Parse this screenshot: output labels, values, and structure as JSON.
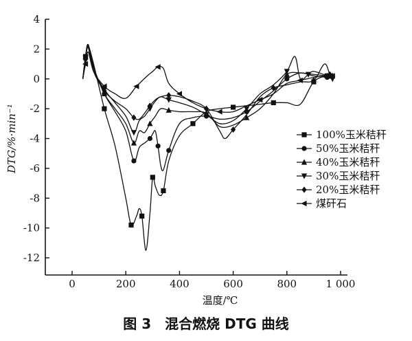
{
  "chart_data": {
    "type": "line",
    "caption": "图 3　混合燃烧 DTG 曲线",
    "xlabel": "温度/℃",
    "ylabel": "DTG/%·min⁻¹",
    "xlim": [
      0,
      1000
    ],
    "ylim": [
      -12,
      4
    ],
    "xticks": [
      0,
      200,
      400,
      600,
      800,
      1000
    ],
    "xtick_labels": [
      "0",
      "200",
      "400",
      "600",
      "800",
      "1 000"
    ],
    "yticks": [
      4,
      2,
      0,
      -2,
      -4,
      -6,
      -8,
      -10,
      -12
    ],
    "legend_position": "right",
    "series": [
      {
        "name": "100%玉米秸秆",
        "marker": "square",
        "x": [
          40,
          50,
          60,
          80,
          120,
          160,
          200,
          220,
          240,
          250,
          260,
          275,
          290,
          300,
          310,
          325,
          340,
          360,
          400,
          450,
          500,
          550,
          600,
          650,
          700,
          750,
          800,
          850,
          900,
          950,
          970
        ],
        "y": [
          0.0,
          1.5,
          2.2,
          1.0,
          -2.0,
          -4.5,
          -8.0,
          -9.8,
          -9.2,
          -8.7,
          -9.2,
          -11.5,
          -9.0,
          -6.6,
          -7.2,
          -7.8,
          -7.5,
          -5.5,
          -3.8,
          -3.0,
          -2.2,
          -2.0,
          -1.9,
          -1.8,
          -1.7,
          -1.6,
          -1.6,
          -1.7,
          -0.2,
          0.2,
          0.0
        ]
      },
      {
        "name": "50%玉米秸秆",
        "marker": "circle",
        "x": [
          40,
          50,
          60,
          80,
          120,
          160,
          200,
          230,
          250,
          270,
          290,
          300,
          310,
          320,
          330,
          340,
          360,
          400,
          450,
          500,
          550,
          600,
          650,
          700,
          750,
          800,
          850,
          900,
          950,
          970
        ],
        "y": [
          0.0,
          1.5,
          2.3,
          0.8,
          -1.0,
          -2.2,
          -3.5,
          -5.5,
          -4.6,
          -4.3,
          -4.0,
          -3.7,
          -3.5,
          -4.5,
          -5.8,
          -6.1,
          -4.8,
          -3.0,
          -2.6,
          -2.5,
          -2.7,
          -2.6,
          -2.2,
          -1.5,
          -0.8,
          0.0,
          0.4,
          0.2,
          0.1,
          0.0
        ]
      },
      {
        "name": "40%玉米秸秆",
        "marker": "triangle-up",
        "x": [
          40,
          50,
          60,
          80,
          120,
          160,
          200,
          230,
          250,
          270,
          290,
          310,
          330,
          360,
          400,
          450,
          500,
          550,
          600,
          650,
          700,
          750,
          800,
          850,
          900,
          950,
          970
        ],
        "y": [
          0.0,
          1.5,
          2.2,
          0.8,
          -1.0,
          -2.0,
          -3.0,
          -4.3,
          -3.5,
          -3.6,
          -3.0,
          -2.5,
          -2.0,
          -2.1,
          -2.2,
          -2.2,
          -2.3,
          -3.2,
          -3.1,
          -2.6,
          -2.0,
          -1.0,
          0.3,
          0.4,
          0.3,
          0.2,
          0.1
        ]
      },
      {
        "name": "30%玉米秸秆",
        "marker": "triangle-down",
        "x": [
          40,
          50,
          60,
          80,
          120,
          160,
          200,
          230,
          250,
          270,
          290,
          310,
          330,
          360,
          400,
          450,
          500,
          550,
          600,
          650,
          700,
          750,
          800,
          830,
          850,
          880,
          900,
          950,
          970
        ],
        "y": [
          0.0,
          1.4,
          2.3,
          0.6,
          -0.7,
          -1.6,
          -2.5,
          -3.6,
          -2.8,
          -2.5,
          -2.0,
          -1.5,
          -1.2,
          -1.4,
          -1.6,
          -1.9,
          -2.4,
          -3.0,
          -2.8,
          -2.0,
          -1.0,
          -0.4,
          0.5,
          1.5,
          0.0,
          0.3,
          0.5,
          0.2,
          0.0
        ]
      },
      {
        "name": "20%玉米秸秆",
        "marker": "diamond",
        "x": [
          40,
          50,
          60,
          80,
          120,
          160,
          200,
          230,
          250,
          270,
          290,
          310,
          330,
          360,
          400,
          450,
          500,
          550,
          570,
          600,
          650,
          700,
          750,
          800,
          850,
          900,
          940,
          960,
          970
        ],
        "y": [
          0.0,
          1.3,
          2.1,
          0.5,
          -0.8,
          -1.5,
          -2.0,
          -2.6,
          -2.7,
          -2.3,
          -1.8,
          -1.4,
          -1.2,
          -1.1,
          -1.2,
          -1.5,
          -2.0,
          -3.5,
          -4.0,
          -3.4,
          -2.4,
          -1.2,
          -0.6,
          -0.4,
          -0.2,
          -0.1,
          1.0,
          0.3,
          0.2
        ]
      },
      {
        "name": "煤矸石",
        "marker": "triangle-left",
        "x": [
          40,
          50,
          60,
          80,
          120,
          160,
          200,
          240,
          280,
          300,
          320,
          340,
          360,
          400,
          450,
          500,
          550,
          600,
          650,
          700,
          750,
          800,
          850,
          900,
          950,
          970
        ],
        "y": [
          0.0,
          1.0,
          1.8,
          0.5,
          -0.5,
          -1.0,
          -1.3,
          -0.5,
          0.2,
          0.5,
          0.8,
          0.7,
          -0.3,
          -1.0,
          -1.6,
          -2.0,
          -2.2,
          -2.2,
          -1.8,
          -1.4,
          -1.0,
          -0.3,
          -0.1,
          0.1,
          0.2,
          0.2
        ]
      }
    ]
  }
}
